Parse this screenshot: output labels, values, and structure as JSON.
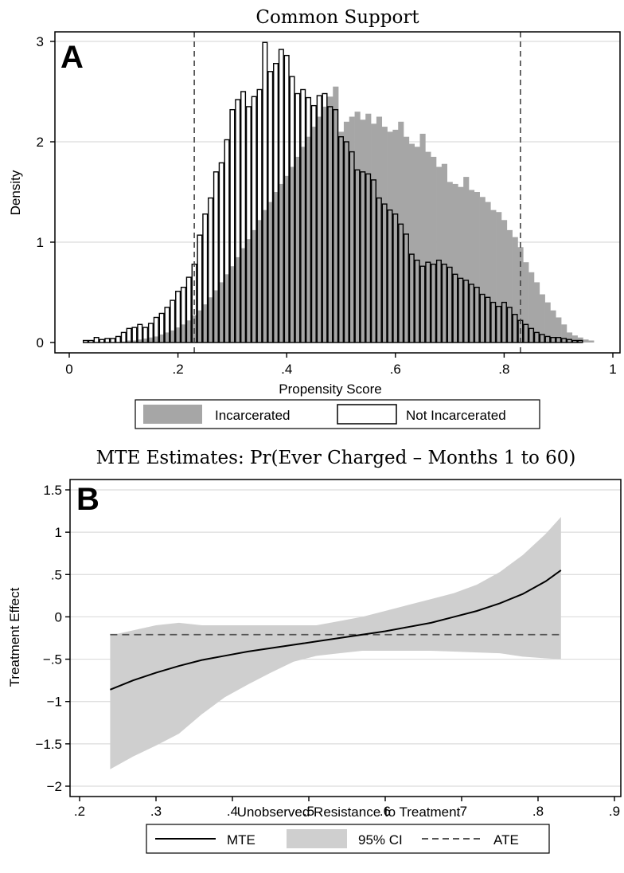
{
  "chart_data": [
    {
      "type": "bar",
      "panel_label": "A",
      "title": "Common Support",
      "xlabel": "Propensity Score",
      "ylabel": "Density",
      "xlim": [
        0,
        1
      ],
      "ylim": [
        0,
        3
      ],
      "x_ticks": [
        0,
        0.2,
        0.4,
        0.6,
        0.8,
        1
      ],
      "x_tick_labels": [
        "0",
        ".2",
        ".4",
        ".6",
        ".8",
        "1"
      ],
      "y_ticks": [
        0,
        1,
        2,
        3
      ],
      "y_tick_labels": [
        "0",
        "1",
        "2",
        "3"
      ],
      "grid": "horizontal",
      "bin_width": 0.01,
      "reference_lines": [
        0.23,
        0.83
      ],
      "legend_position": "bottom",
      "series": [
        {
          "name": "Incarcerated",
          "style": "filled",
          "x": [
            0.1,
            0.11,
            0.12,
            0.13,
            0.14,
            0.15,
            0.16,
            0.17,
            0.18,
            0.19,
            0.2,
            0.21,
            0.22,
            0.23,
            0.24,
            0.25,
            0.26,
            0.27,
            0.28,
            0.29,
            0.3,
            0.31,
            0.32,
            0.33,
            0.34,
            0.35,
            0.36,
            0.37,
            0.38,
            0.39,
            0.4,
            0.41,
            0.42,
            0.43,
            0.44,
            0.45,
            0.46,
            0.47,
            0.48,
            0.49,
            0.5,
            0.51,
            0.52,
            0.53,
            0.54,
            0.55,
            0.56,
            0.57,
            0.58,
            0.59,
            0.6,
            0.61,
            0.62,
            0.63,
            0.64,
            0.65,
            0.66,
            0.67,
            0.68,
            0.69,
            0.7,
            0.71,
            0.72,
            0.73,
            0.74,
            0.75,
            0.76,
            0.77,
            0.78,
            0.79,
            0.8,
            0.81,
            0.82,
            0.83,
            0.84,
            0.85,
            0.86,
            0.87,
            0.88,
            0.89,
            0.9,
            0.91,
            0.92,
            0.93,
            0.94,
            0.95,
            0.96
          ],
          "values": [
            0.01,
            0.02,
            0.02,
            0.03,
            0.04,
            0.05,
            0.06,
            0.08,
            0.1,
            0.12,
            0.15,
            0.18,
            0.22,
            0.27,
            0.32,
            0.38,
            0.45,
            0.52,
            0.6,
            0.68,
            0.76,
            0.85,
            0.94,
            1.03,
            1.12,
            1.22,
            1.32,
            1.4,
            1.5,
            1.58,
            1.66,
            1.75,
            1.85,
            1.95,
            2.05,
            2.15,
            2.25,
            2.35,
            2.45,
            2.55,
            2.1,
            2.2,
            2.25,
            2.3,
            2.22,
            2.28,
            2.18,
            2.25,
            2.15,
            2.1,
            2.12,
            2.2,
            2.05,
            1.98,
            1.95,
            2.08,
            1.9,
            1.85,
            1.75,
            1.78,
            1.6,
            1.58,
            1.55,
            1.65,
            1.52,
            1.5,
            1.45,
            1.4,
            1.32,
            1.3,
            1.22,
            1.12,
            1.05,
            0.95,
            0.8,
            0.7,
            0.6,
            0.48,
            0.4,
            0.32,
            0.25,
            0.18,
            0.1,
            0.07,
            0.05,
            0.03,
            0.02
          ]
        },
        {
          "name": "Not Incarcerated",
          "style": "outline",
          "x": [
            0.03,
            0.04,
            0.05,
            0.06,
            0.07,
            0.08,
            0.09,
            0.1,
            0.11,
            0.12,
            0.13,
            0.14,
            0.15,
            0.16,
            0.17,
            0.18,
            0.19,
            0.2,
            0.21,
            0.22,
            0.23,
            0.24,
            0.25,
            0.26,
            0.27,
            0.28,
            0.29,
            0.3,
            0.31,
            0.32,
            0.33,
            0.34,
            0.35,
            0.36,
            0.37,
            0.38,
            0.39,
            0.4,
            0.41,
            0.42,
            0.43,
            0.44,
            0.45,
            0.46,
            0.47,
            0.48,
            0.49,
            0.5,
            0.51,
            0.52,
            0.53,
            0.54,
            0.55,
            0.56,
            0.57,
            0.58,
            0.59,
            0.6,
            0.61,
            0.62,
            0.63,
            0.64,
            0.65,
            0.66,
            0.67,
            0.68,
            0.69,
            0.7,
            0.71,
            0.72,
            0.73,
            0.74,
            0.75,
            0.76,
            0.77,
            0.78,
            0.79,
            0.8,
            0.81,
            0.82,
            0.83,
            0.84,
            0.85,
            0.86,
            0.87,
            0.88,
            0.89,
            0.9,
            0.91,
            0.92,
            0.93,
            0.94
          ],
          "values": [
            0.02,
            0.02,
            0.05,
            0.03,
            0.04,
            0.04,
            0.06,
            0.1,
            0.14,
            0.15,
            0.18,
            0.15,
            0.19,
            0.25,
            0.29,
            0.35,
            0.42,
            0.51,
            0.55,
            0.65,
            0.78,
            1.07,
            1.28,
            1.44,
            1.7,
            1.79,
            2.02,
            2.32,
            2.42,
            2.5,
            2.35,
            2.45,
            2.52,
            2.99,
            2.7,
            2.78,
            2.92,
            2.86,
            2.65,
            2.48,
            2.52,
            2.44,
            2.36,
            2.46,
            2.48,
            2.35,
            2.32,
            2.05,
            2.0,
            1.9,
            1.72,
            1.7,
            1.68,
            1.62,
            1.44,
            1.38,
            1.32,
            1.28,
            1.18,
            1.08,
            0.88,
            0.82,
            0.76,
            0.8,
            0.78,
            0.82,
            0.78,
            0.75,
            0.68,
            0.64,
            0.62,
            0.58,
            0.55,
            0.48,
            0.45,
            0.4,
            0.36,
            0.4,
            0.35,
            0.28,
            0.22,
            0.18,
            0.14,
            0.1,
            0.08,
            0.06,
            0.05,
            0.05,
            0.04,
            0.03,
            0.02,
            0.02
          ]
        }
      ]
    },
    {
      "type": "line",
      "panel_label": "B",
      "title": "MTE Estimates: Pr(Ever Charged – Months 1 to 60)",
      "xlabel": "Unobserved Resistance to Treatment",
      "ylabel": "Treatment Effect",
      "xlim": [
        0.2,
        0.9
      ],
      "ylim": [
        -2,
        1.5
      ],
      "x_ticks": [
        0.2,
        0.3,
        0.4,
        0.5,
        0.6,
        0.7,
        0.8,
        0.9
      ],
      "x_tick_labels": [
        ".2",
        ".3",
        ".4",
        ".5",
        ".6",
        ".7",
        ".8",
        ".9"
      ],
      "y_ticks": [
        -2,
        -1.5,
        -1,
        -0.5,
        0,
        0.5,
        1,
        1.5
      ],
      "y_tick_labels": [
        "−2",
        "−1.5",
        "−1",
        "−.5",
        "0",
        ".5",
        "1",
        "1.5"
      ],
      "grid": "horizontal",
      "legend_position": "bottom",
      "x": [
        0.24,
        0.27,
        0.3,
        0.33,
        0.36,
        0.39,
        0.42,
        0.45,
        0.48,
        0.51,
        0.54,
        0.57,
        0.6,
        0.63,
        0.66,
        0.69,
        0.72,
        0.75,
        0.78,
        0.81,
        0.83
      ],
      "series": [
        {
          "name": "MTE",
          "style": "solid",
          "values": [
            -0.86,
            -0.75,
            -0.66,
            -0.58,
            -0.51,
            -0.46,
            -0.41,
            -0.37,
            -0.33,
            -0.29,
            -0.25,
            -0.21,
            -0.17,
            -0.12,
            -0.07,
            0.0,
            0.07,
            0.16,
            0.27,
            0.42,
            0.55
          ]
        },
        {
          "name": "95% CI",
          "style": "band",
          "lower": [
            -1.8,
            -1.65,
            -1.52,
            -1.38,
            -1.15,
            -0.95,
            -0.8,
            -0.66,
            -0.53,
            -0.46,
            -0.43,
            -0.4,
            -0.4,
            -0.4,
            -0.4,
            -0.41,
            -0.42,
            -0.43,
            -0.47,
            -0.49,
            -0.5
          ],
          "upper": [
            -0.22,
            -0.16,
            -0.1,
            -0.07,
            -0.1,
            -0.1,
            -0.1,
            -0.1,
            -0.1,
            -0.1,
            -0.05,
            0.0,
            0.07,
            0.14,
            0.21,
            0.28,
            0.38,
            0.53,
            0.73,
            0.98,
            1.18
          ]
        },
        {
          "name": "ATE",
          "style": "dashed",
          "values": [
            -0.21,
            -0.21,
            -0.21,
            -0.21,
            -0.21,
            -0.21,
            -0.21,
            -0.21,
            -0.21,
            -0.21,
            -0.21,
            -0.21,
            -0.21,
            -0.21,
            -0.21,
            -0.21,
            -0.21,
            -0.21,
            -0.21,
            -0.21,
            -0.21
          ]
        }
      ]
    }
  ],
  "colors": {
    "incarcerated_fill": "#a6a6a6",
    "outline_bar_stroke": "#000000",
    "ci_band": "#cfcfcf",
    "mte_line": "#000000",
    "ate_line": "#555555",
    "gridline": "#dcdcdc",
    "reference_line": "#444444"
  }
}
